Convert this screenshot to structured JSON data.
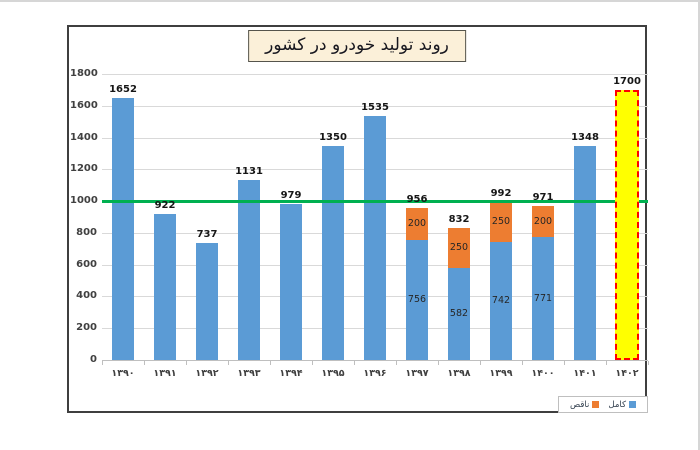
{
  "chart_data": {
    "type": "bar",
    "title": "روند تولید خودرو در کشور",
    "direction": "rtl",
    "categories": [
      "۱۳۹۰",
      "۱۳۹۱",
      "۱۳۹۲",
      "۱۳۹۳",
      "۱۳۹۴",
      "۱۳۹۵",
      "۱۳۹۶",
      "۱۳۹۷",
      "۱۳۹۸",
      "۱۳۹۹",
      "۱۴۰۰",
      "۱۴۰۱",
      "۱۴۰۲"
    ],
    "series": [
      {
        "name": "کامل",
        "color": "#5b9bd5",
        "values": [
          1652,
          922,
          737,
          1131,
          979,
          1350,
          1535,
          756,
          582,
          742,
          771,
          1348,
          null
        ]
      },
      {
        "name": "ناقص",
        "color": "#ed7d31",
        "values": [
          null,
          null,
          null,
          null,
          null,
          null,
          null,
          200,
          250,
          250,
          200,
          null,
          null
        ]
      }
    ],
    "totals": [
      1652,
      922,
      737,
      1131,
      979,
      1350,
      1535,
      956,
      832,
      992,
      971,
      1348,
      1700
    ],
    "forecast": {
      "category": "۱۴۰۲",
      "value": 1700,
      "fill": "#ffff00",
      "border": "#ff0000"
    },
    "reference_line": {
      "value": 1000,
      "color": "#00b050"
    },
    "y_axis": {
      "min": 0,
      "max": 1800,
      "step": 200,
      "ticks": [
        "0",
        "200",
        "400",
        "600",
        "800",
        "1000",
        "1200",
        "1400",
        "1600",
        "1800"
      ]
    },
    "legend": [
      {
        "label": "کامل",
        "color": "#5b9bd5"
      },
      {
        "label": "ناقص",
        "color": "#ed7d31"
      }
    ],
    "legend_position": "bottom-right",
    "grid": true,
    "colors": {
      "gridline": "#d9d9d9",
      "axis": "#bfbfbf",
      "text": "#404040"
    }
  }
}
